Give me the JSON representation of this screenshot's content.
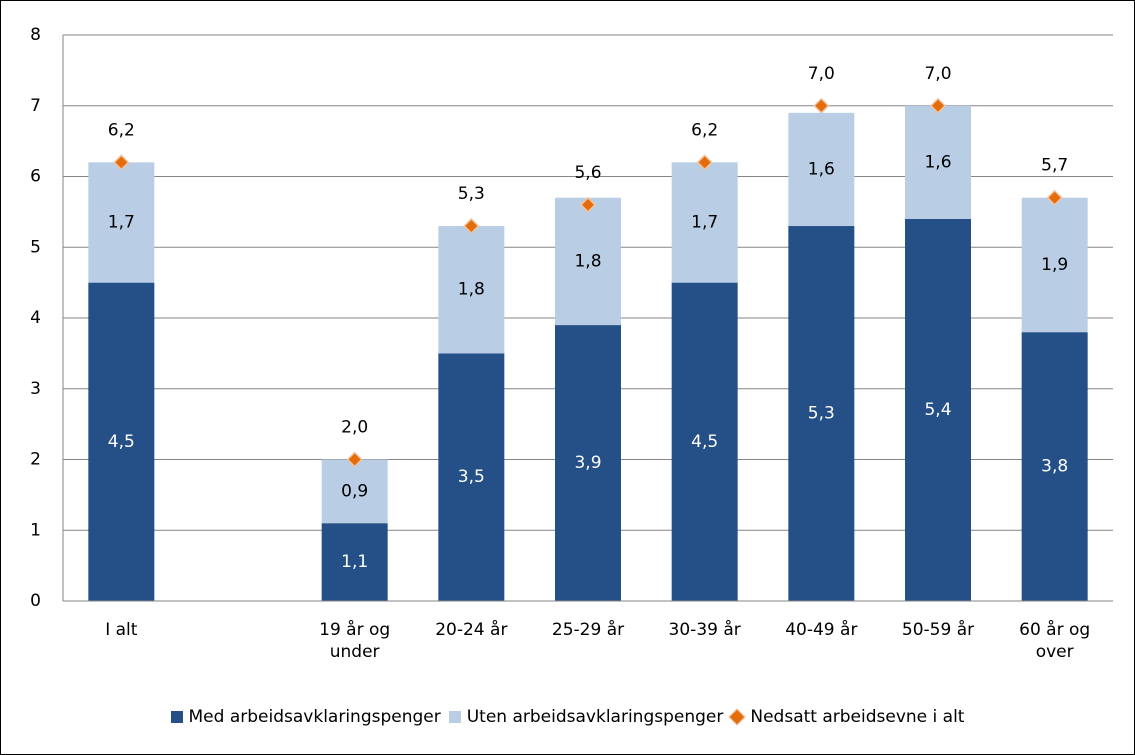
{
  "chart_data": {
    "type": "bar",
    "stacked": true,
    "categories": [
      "I alt",
      null,
      "19 år og under",
      "20-24 år",
      "25-29 år",
      "30-39 år",
      "40-49 år",
      "50-59 år",
      "60 år og over"
    ],
    "series": [
      {
        "name": "Med arbeidsavklaringspenger",
        "color": "#254f87",
        "values": [
          4.5,
          null,
          1.1,
          3.5,
          3.9,
          4.5,
          5.3,
          5.4,
          3.8
        ],
        "value_labels": [
          "4,5",
          null,
          "1,1",
          "3,5",
          "3,9",
          "4,5",
          "5,3",
          "5,4",
          "3,8"
        ]
      },
      {
        "name": "Uten arbeidsavklaringspenger",
        "color": "#b9cde5",
        "values": [
          1.7,
          null,
          0.9,
          1.8,
          1.8,
          1.7,
          1.6,
          1.6,
          1.9
        ],
        "value_labels": [
          "1,7",
          null,
          "0,9",
          "1,8",
          "1,8",
          "1,7",
          "1,6",
          "1,6",
          "1,9"
        ]
      },
      {
        "name": "Nedsatt arbeidsevne i alt",
        "type": "scatter",
        "marker": "diamond",
        "color": "#e46c0a",
        "values": [
          6.2,
          null,
          2.0,
          5.3,
          5.6,
          6.2,
          7.0,
          7.0,
          5.7
        ],
        "value_labels": [
          "6,2",
          null,
          "2,0",
          "5,3",
          "5,6",
          "6,2",
          "7,0",
          "7,0",
          "5,7"
        ]
      }
    ],
    "ylim": [
      0,
      8
    ],
    "yticks": [
      0,
      1,
      2,
      3,
      4,
      5,
      6,
      7,
      8
    ],
    "grid": true,
    "legend": "bottom"
  }
}
